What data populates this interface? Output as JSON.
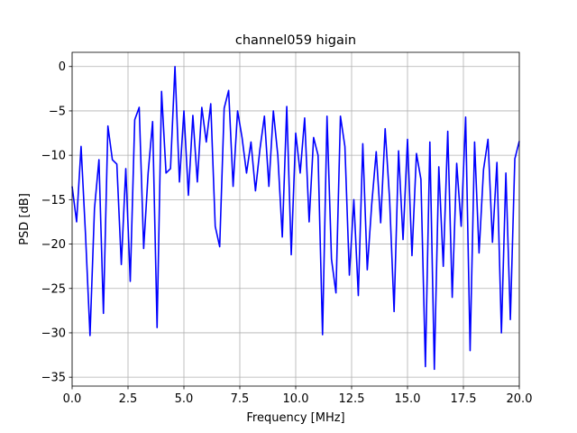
{
  "chart_data": {
    "type": "line",
    "title": "channel059 higain",
    "xlabel": "Frequency [MHz]",
    "ylabel": "PSD [dB]",
    "xlim": [
      0,
      20
    ],
    "ylim": [
      -36.0,
      1.6
    ],
    "xticks": [
      {
        "value": 0,
        "label": "0.0"
      },
      2.5,
      {
        "value": 5,
        "label": "5.0"
      },
      7.5,
      {
        "value": 10,
        "label": "10.0"
      },
      12.5,
      {
        "value": 15,
        "label": "15.0"
      },
      17.5,
      {
        "value": 20,
        "label": "20.0"
      }
    ],
    "yticks": [
      {
        "value": -35,
        "label": "−35"
      },
      {
        "value": -30,
        "label": "−30"
      },
      {
        "value": -25,
        "label": "−25"
      },
      {
        "value": -20,
        "label": "−20"
      },
      {
        "value": -15,
        "label": "−15"
      },
      {
        "value": -10,
        "label": "−10"
      },
      {
        "value": -5,
        "label": "−5"
      },
      0
    ],
    "grid": true,
    "x": [
      0,
      0.2,
      0.4,
      0.6,
      0.8,
      1.0,
      1.2,
      1.4,
      1.6,
      1.8,
      2.0,
      2.2,
      2.4,
      2.6,
      2.8,
      3.0,
      3.2,
      3.4,
      3.6,
      3.8,
      4.0,
      4.2,
      4.4,
      4.6,
      4.8,
      5.0,
      5.2,
      5.4,
      5.6,
      5.8,
      6.0,
      6.2,
      6.4,
      6.6,
      6.8,
      7.0,
      7.2,
      7.4,
      7.6,
      7.8,
      8.0,
      8.2,
      8.4,
      8.6,
      8.8,
      9.0,
      9.2,
      9.4,
      9.6,
      9.8,
      10.0,
      10.2,
      10.4,
      10.6,
      10.8,
      11.0,
      11.2,
      11.4,
      11.6,
      11.8,
      12.0,
      12.2,
      12.4,
      12.6,
      12.8,
      13.0,
      13.2,
      13.4,
      13.6,
      13.8,
      14.0,
      14.2,
      14.4,
      14.6,
      14.8,
      15.0,
      15.2,
      15.4,
      15.6,
      15.8,
      16.0,
      16.2,
      16.4,
      16.6,
      16.8,
      17.0,
      17.2,
      17.4,
      17.6,
      17.8,
      18.0,
      18.2,
      18.4,
      18.6,
      18.8,
      19.0,
      19.2,
      19.4,
      19.6,
      19.8,
      20.0
    ],
    "series": [
      {
        "color": "#0000ff",
        "values": [
          -13.5,
          -17.5,
          -9,
          -19,
          -30.3,
          -16,
          -10.5,
          -27.8,
          -6.7,
          -10.5,
          -11,
          -22.3,
          -11.5,
          -24.2,
          -6,
          -4.6,
          -20.5,
          -12,
          -6.2,
          -29.4,
          -2.8,
          -12,
          -11.5,
          0,
          -13,
          -5,
          -14.5,
          -5.5,
          -13,
          -4.6,
          -8.5,
          -4.2,
          -18,
          -20.3,
          -4.7,
          -2.7,
          -13.5,
          -5,
          -8,
          -12,
          -8.5,
          -14,
          -9.3,
          -5.6,
          -13.5,
          -5,
          -10,
          -19.2,
          -4.5,
          -21.2,
          -7.5,
          -12,
          -5.8,
          -17.5,
          -8,
          -10,
          -30.2,
          -5.6,
          -21.7,
          -25.5,
          -5.6,
          -9,
          -23.5,
          -15,
          -25.8,
          -8.7,
          -22.9,
          -15.5,
          -9.6,
          -17.6,
          -7,
          -15,
          -27.6,
          -9.5,
          -19.5,
          -8.2,
          -21.3,
          -9.8,
          -12.7,
          -33.8,
          -8.5,
          -34.1,
          -11.3,
          -22.5,
          -7.3,
          -26,
          -10.9,
          -18,
          -5.7,
          -32,
          -8.5,
          -21,
          -11.6,
          -8.2,
          -19.8,
          -10.8,
          -30,
          -12,
          -28.5,
          -10.4,
          -8.4
        ]
      }
    ]
  }
}
